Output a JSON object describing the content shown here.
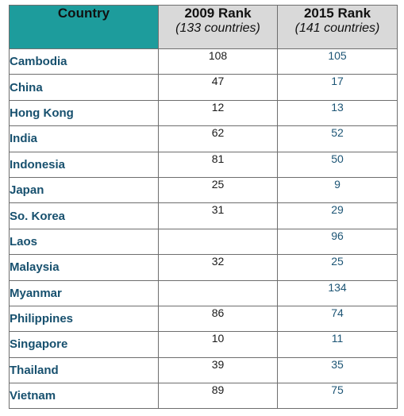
{
  "table": {
    "headers": {
      "country": "Country",
      "rank_2009": {
        "title": "2009 Rank",
        "subtitle": "(133 countries)"
      },
      "rank_2015": {
        "title": "2015 Rank",
        "subtitle": "(141 countries)"
      }
    },
    "rows": [
      {
        "country": "Cambodia",
        "rank_2009": "108",
        "rank_2015": "105"
      },
      {
        "country": "China",
        "rank_2009": "47",
        "rank_2015": "17"
      },
      {
        "country": "Hong Kong",
        "rank_2009": "12",
        "rank_2015": "13"
      },
      {
        "country": "India",
        "rank_2009": "62",
        "rank_2015": "52"
      },
      {
        "country": "Indonesia",
        "rank_2009": "81",
        "rank_2015": "50"
      },
      {
        "country": "Japan",
        "rank_2009": "25",
        "rank_2015": "9"
      },
      {
        "country": "So. Korea",
        "rank_2009": "31",
        "rank_2015": "29"
      },
      {
        "country": "Laos",
        "rank_2009": "",
        "rank_2015": "96"
      },
      {
        "country": "Malaysia",
        "rank_2009": "32",
        "rank_2015": "25"
      },
      {
        "country": "Myanmar",
        "rank_2009": "",
        "rank_2015": "134"
      },
      {
        "country": "Philippines",
        "rank_2009": "86",
        "rank_2015": "74"
      },
      {
        "country": "Singapore",
        "rank_2009": "10",
        "rank_2015": "11"
      },
      {
        "country": "Thailand",
        "rank_2009": "39",
        "rank_2015": "35"
      },
      {
        "country": "Vietnam",
        "rank_2009": "89",
        "rank_2015": "75"
      }
    ]
  },
  "colors": {
    "country_header_bg": "#1d9c9c",
    "year_header_bg": "#d9d9d9",
    "country_text": "#17506e",
    "rank_2015_text": "#1d5575",
    "border": "#6e6e6e"
  }
}
